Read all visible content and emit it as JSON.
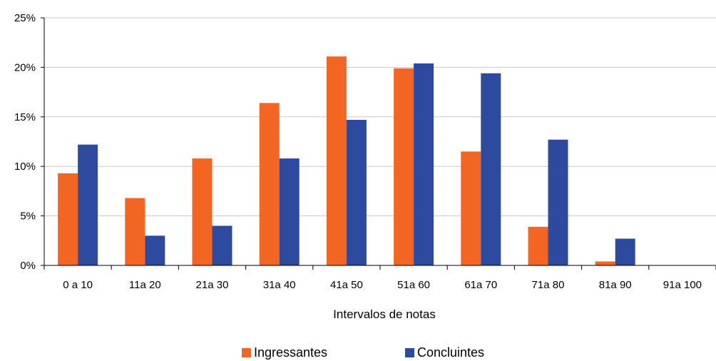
{
  "chart_data": {
    "type": "bar",
    "categories": [
      "0 a 10",
      "11a 20",
      "21a 30",
      "31a 40",
      "41a 50",
      "51a 60",
      "61a 70",
      "71a 80",
      "81a 90",
      "91a 100"
    ],
    "series": [
      {
        "name": "Ingressantes",
        "color": "#f26522",
        "values": [
          9.3,
          6.8,
          10.8,
          16.4,
          21.1,
          19.9,
          11.5,
          3.9,
          0.4,
          0
        ]
      },
      {
        "name": "Concluintes",
        "color": "#2e4a9e",
        "values": [
          12.2,
          3.0,
          4.0,
          10.8,
          14.7,
          20.4,
          19.4,
          12.7,
          2.7,
          0
        ]
      }
    ],
    "title": "",
    "xlabel": "Intervalos de notas",
    "ylabel": "",
    "ylim": [
      0,
      25
    ],
    "yticks": [
      0,
      5,
      10,
      15,
      20,
      25
    ],
    "ytick_suffix": "%",
    "grid": true,
    "legend_position": "bottom"
  }
}
